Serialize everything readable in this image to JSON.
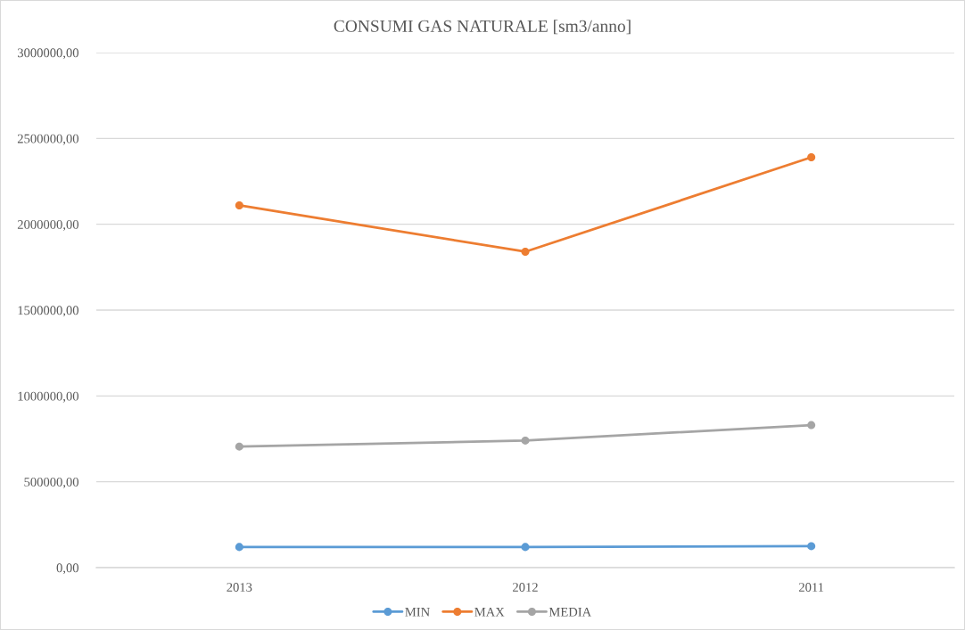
{
  "chart_data": {
    "type": "line",
    "title": "CONSUMI GAS NATURALE [sm3/anno]",
    "categories": [
      "2013",
      "2012",
      "2011"
    ],
    "series": [
      {
        "name": "MIN",
        "color": "#5b9bd5",
        "values": [
          120000,
          120000,
          125000
        ]
      },
      {
        "name": "MAX",
        "color": "#ed7d31",
        "values": [
          2110000,
          1840000,
          2390000
        ]
      },
      {
        "name": "MEDIA",
        "color": "#a5a5a5",
        "values": [
          705000,
          740000,
          830000
        ]
      }
    ],
    "ylim": [
      0,
      3000000
    ],
    "yticks": [
      {
        "value": 0,
        "label": "0,00"
      },
      {
        "value": 500000,
        "label": "500000,00"
      },
      {
        "value": 1000000,
        "label": "1000000,00"
      },
      {
        "value": 1500000,
        "label": "1500000,00"
      },
      {
        "value": 2000000,
        "label": "2000000,00"
      },
      {
        "value": 2500000,
        "label": "2500000,00"
      },
      {
        "value": 3000000,
        "label": "3000000,00"
      }
    ],
    "grid": "y",
    "legend": "bottom",
    "marker": "circle",
    "line_style": "solid"
  }
}
